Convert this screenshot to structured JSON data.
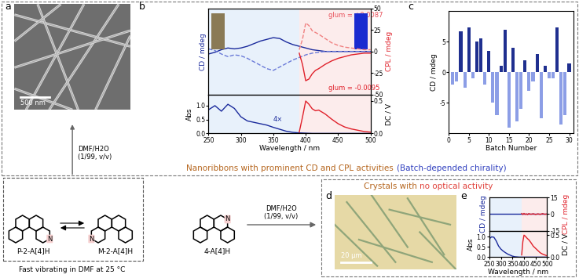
{
  "panel_letters": [
    "a",
    "b",
    "c",
    "d",
    "e"
  ],
  "header_top": [
    {
      "text": "Nanoribbons with prominent CD and CPL activities",
      "color": "#b5651d"
    },
    {
      "text": "(Batch-depended chirality)",
      "color": "#2f3fbf"
    }
  ],
  "header_bottom": [
    {
      "text": "Crystals with",
      "color": "#b5651d"
    },
    {
      "text": "no optical activity",
      "color": "#e0403a"
    }
  ],
  "image_a": {
    "scale_bar": "500 nm"
  },
  "image_d": {
    "scale_bar": "20 μm"
  },
  "structures": {
    "names": [
      "P-2-A[4]H",
      "M-2-A[4]H",
      "4-A[4]H"
    ],
    "atom_label": "N",
    "condition": "Fast vibrating in DMF at 25 °C",
    "arrow_labels": [
      [
        "DMF/H2O",
        "(1/99, v/v)"
      ],
      [
        "DMF/H2O",
        "(1/99, v/v)"
      ]
    ]
  },
  "chart_data": [
    {
      "panel": "b",
      "type": "line",
      "ylabel": "CD / mdeg",
      "y2label": "CPL / mdeg",
      "xlim": [
        250,
        500
      ],
      "xticks": [],
      "ylim": [
        -50,
        50
      ],
      "yticks": [],
      "y2lim": [
        -50,
        50
      ],
      "y2ticks": [
        -50,
        -25,
        0,
        25,
        50
      ],
      "annotations": [
        {
          "text": "glum = +0.0087",
          "color": "#e8505a"
        },
        {
          "text": "glum = -0.0095",
          "color": "#e0202a"
        }
      ],
      "series": [
        {
          "color": "#1a2a9c",
          "line_style": "solid",
          "x": [
            250,
            260,
            270,
            280,
            290,
            300,
            310,
            320,
            330,
            340,
            350,
            360,
            370,
            380,
            390,
            400,
            410,
            420,
            430,
            440,
            450,
            460,
            470,
            480,
            490,
            500
          ],
          "values": [
            -3,
            -1,
            2,
            4,
            3,
            4,
            6,
            9,
            12,
            14,
            16,
            15,
            11,
            8,
            6,
            4,
            2,
            1,
            0,
            0,
            0,
            0,
            0,
            0,
            0,
            0
          ]
        },
        {
          "color": "#6a7ad8",
          "line_style": "dashed",
          "x": [
            250,
            260,
            270,
            280,
            290,
            300,
            310,
            320,
            330,
            340,
            350,
            360,
            370,
            380,
            390,
            400,
            410,
            420,
            430,
            440,
            450,
            460,
            470,
            480,
            490,
            500
          ],
          "values": [
            3,
            1,
            -3,
            -6,
            -4,
            -5,
            -8,
            -12,
            -16,
            -20,
            -22,
            -18,
            -14,
            -10,
            -7,
            -4,
            -2,
            -1,
            0,
            0,
            0,
            0,
            0,
            0,
            0,
            0
          ]
        },
        {
          "color": "#e0202a",
          "line_style": "solid",
          "axis": "y2",
          "x": [
            390,
            395,
            400,
            405,
            410,
            415,
            420,
            430,
            440,
            450,
            460,
            470,
            480,
            490,
            500
          ],
          "values": [
            -2,
            -15,
            -34,
            -32,
            -26,
            -22,
            -20,
            -15,
            -11,
            -8,
            -6,
            -4,
            -3,
            -2,
            -2
          ]
        },
        {
          "color": "#f08080",
          "line_style": "dashed",
          "axis": "y2",
          "x": [
            390,
            395,
            400,
            405,
            410,
            415,
            420,
            430,
            440,
            450,
            460,
            470,
            480,
            490,
            500
          ],
          "values": [
            2,
            14,
            33,
            30,
            24,
            22,
            20,
            15,
            10,
            7,
            5,
            4,
            3,
            2,
            2
          ]
        }
      ]
    },
    {
      "panel": "b",
      "type": "line",
      "xlabel": "Wavelength / nm",
      "ylabel": "Abs",
      "y2label": "DC / V",
      "xlim": [
        250,
        500
      ],
      "xticks": [
        250,
        300,
        350,
        400,
        450,
        500
      ],
      "ylim": [
        0,
        1.4
      ],
      "yticks": [
        {
          "value": 0,
          "label": "0.0"
        },
        0.5,
        {
          "value": 1,
          "label": "1.0"
        }
      ],
      "y2lim": [
        0,
        0.6
      ],
      "y2ticks": [
        {
          "value": 0,
          "label": "0.0"
        },
        0.5
      ],
      "annotations": [
        {
          "text": "4×",
          "color": "#1a2a9c"
        }
      ],
      "series": [
        {
          "color": "#1a2a9c",
          "line_style": "solid",
          "x": [
            250,
            260,
            270,
            280,
            290,
            300,
            310,
            320,
            330,
            340,
            350,
            360,
            370,
            380,
            390,
            400,
            410,
            420,
            430,
            440,
            450,
            460,
            470,
            480,
            490,
            500
          ],
          "values": [
            0.85,
            1.0,
            0.8,
            1.05,
            0.9,
            0.6,
            0.45,
            0.4,
            0.35,
            0.3,
            0.22,
            0.15,
            0.08,
            0.04,
            0.02,
            0.01,
            0,
            0,
            0,
            0,
            0,
            0,
            0,
            0,
            0,
            0
          ]
        },
        {
          "color": "#e0202a",
          "line_style": "solid",
          "axis": "y2",
          "x": [
            390,
            395,
            400,
            405,
            410,
            415,
            420,
            430,
            440,
            450,
            460,
            470,
            480,
            490,
            500
          ],
          "values": [
            0.02,
            0.25,
            0.5,
            0.45,
            0.38,
            0.35,
            0.36,
            0.3,
            0.22,
            0.15,
            0.1,
            0.07,
            0.05,
            0.03,
            0.02
          ]
        }
      ]
    },
    {
      "panel": "c",
      "type": "bar",
      "xlabel": "Batch Number",
      "ylabel": "CD / mdeg",
      "x": [
        1,
        2,
        3,
        4,
        5,
        6,
        7,
        8,
        9,
        10,
        11,
        12,
        13,
        14,
        15,
        16,
        17,
        18,
        19,
        20,
        21,
        22,
        23,
        24,
        25,
        26,
        27,
        28,
        29,
        30
      ],
      "values": [
        -2,
        -1.5,
        6.7,
        -2.5,
        7.3,
        -1,
        5,
        5.5,
        -2,
        3.5,
        -5,
        -7,
        1,
        7,
        -9,
        4,
        -8,
        -6,
        2,
        -3,
        -1.5,
        3,
        -7.5,
        1,
        -1,
        -1,
        7.3,
        -8.5,
        -7,
        1.5
      ],
      "colors": [
        "#8c9ee6",
        "#8c9ee6",
        "#1f2f8f",
        "#8c9ee6",
        "#1f2f8f",
        "#8c9ee6",
        "#1f2f8f",
        "#1f2f8f",
        "#8c9ee6",
        "#1f2f8f",
        "#8c9ee6",
        "#8c9ee6",
        "#1f2f8f",
        "#1f2f8f",
        "#8c9ee6",
        "#1f2f8f",
        "#8c9ee6",
        "#8c9ee6",
        "#1f2f8f",
        "#8c9ee6",
        "#8c9ee6",
        "#1f2f8f",
        "#8c9ee6",
        "#1f2f8f",
        "#8c9ee6",
        "#8c9ee6",
        "#1f2f8f",
        "#8c9ee6",
        "#8c9ee6",
        "#1f2f8f"
      ],
      "xlim": [
        0,
        31
      ],
      "xticks": [
        0,
        5,
        10,
        15,
        20,
        25,
        30
      ],
      "ylim": [
        -10,
        10
      ],
      "yticks": [
        -5,
        0,
        5
      ]
    },
    {
      "panel": "e",
      "type": "line",
      "ylabel": "CD / mdeg",
      "y2label": "CPL / mdeg",
      "xlim": [
        250,
        500
      ],
      "xticks": [],
      "ylim": [
        -15,
        15
      ],
      "yticks": [],
      "y2lim": [
        -15,
        15
      ],
      "y2ticks": [
        -15,
        0,
        15
      ],
      "series": [
        {
          "color": "#1a2a9c",
          "line_style": "solid",
          "x": [
            250,
            260,
            270,
            280,
            290,
            300,
            310,
            320,
            330,
            340,
            350,
            360,
            370,
            380,
            390,
            400,
            410,
            420,
            430,
            440,
            450,
            460,
            470,
            480,
            490,
            500
          ],
          "values": [
            0,
            0,
            0,
            0,
            0,
            0,
            0,
            0,
            0,
            0,
            0,
            0,
            0,
            0,
            0,
            0,
            0,
            0,
            0,
            0,
            0,
            0,
            0,
            0,
            0,
            0
          ]
        },
        {
          "color": "#e0202a",
          "line_style": "solid",
          "axis": "y2",
          "x": [
            390,
            395,
            400,
            405,
            410,
            415,
            420,
            430,
            440,
            450,
            460,
            470,
            480,
            490,
            500
          ],
          "values": [
            0.5,
            -0.4,
            0.6,
            -0.3,
            0.2,
            -0.5,
            0.4,
            -0.2,
            0.3,
            -0.4,
            0.2,
            -0.3,
            0.4,
            -0.2,
            0.1
          ]
        }
      ]
    },
    {
      "panel": "e",
      "type": "line",
      "xlabel": "Wavelength / nm",
      "ylabel": "Abs",
      "y2label": "DC / V",
      "xlim": [
        250,
        500
      ],
      "xticks": [
        250,
        300,
        350,
        400,
        450,
        500
      ],
      "ylim": [
        0,
        1.3
      ],
      "yticks": [
        {
          "value": 0,
          "label": "0.0"
        },
        0.5,
        {
          "value": 1,
          "label": "1.0"
        }
      ],
      "y2lim": [
        0,
        0.6
      ],
      "y2ticks": [
        {
          "value": 0,
          "label": "0.0"
        },
        0.5
      ],
      "series": [
        {
          "color": "#1a2a9c",
          "line_style": "solid",
          "x": [
            250,
            260,
            270,
            280,
            290,
            300,
            310,
            320,
            330,
            340,
            350,
            360,
            370,
            380,
            390,
            400,
            410,
            420,
            430,
            440,
            450,
            460,
            470,
            480,
            490,
            500
          ],
          "values": [
            0.9,
            1.0,
            0.98,
            0.8,
            0.55,
            0.4,
            0.3,
            0.22,
            0.15,
            0.1,
            0.05,
            0.02,
            0.01,
            0,
            0,
            0,
            0,
            0,
            0,
            0,
            0,
            0,
            0,
            0,
            0,
            0
          ]
        },
        {
          "color": "#e0202a",
          "line_style": "solid",
          "axis": "y2",
          "x": [
            390,
            395,
            400,
            405,
            410,
            415,
            420,
            430,
            440,
            450,
            460,
            470,
            480,
            490,
            500
          ],
          "values": [
            0.05,
            0.35,
            0.5,
            0.48,
            0.45,
            0.42,
            0.4,
            0.33,
            0.25,
            0.2,
            0.15,
            0.1,
            0.07,
            0.05,
            0.03
          ]
        }
      ]
    }
  ]
}
